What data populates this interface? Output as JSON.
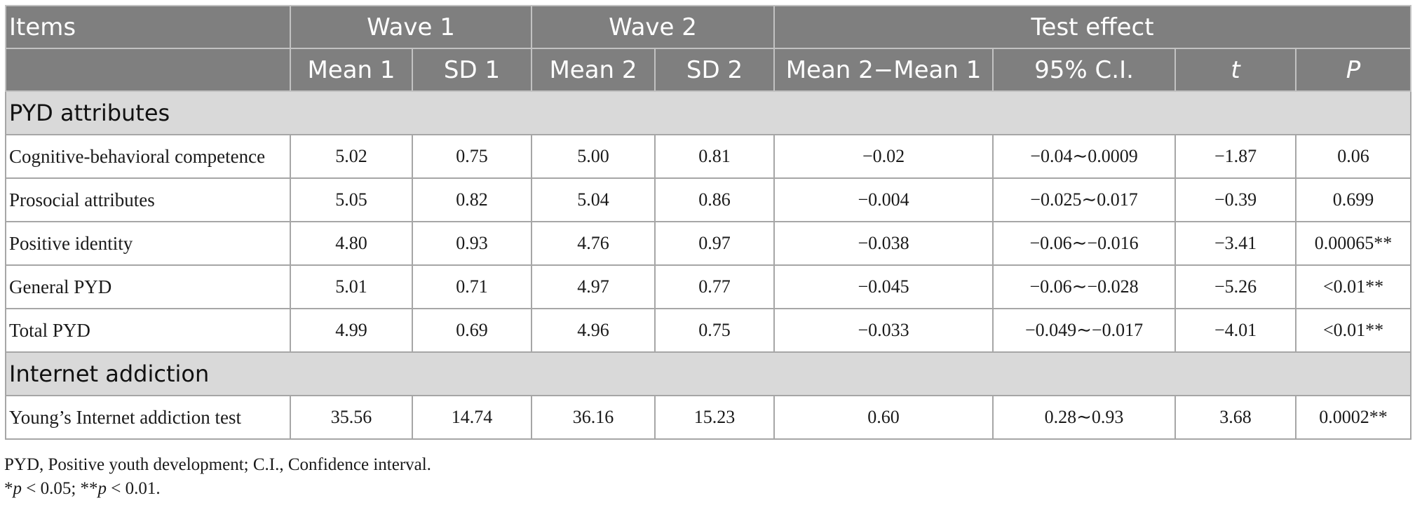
{
  "table": {
    "header_top": {
      "items": "Items",
      "wave1": "Wave 1",
      "wave2": "Wave 2",
      "test_effect": "Test effect"
    },
    "header_sub": {
      "mean1": "Mean 1",
      "sd1": "SD 1",
      "mean2": "Mean 2",
      "sd2": "SD 2",
      "diff": "Mean 2−Mean 1",
      "ci": "95% C.I.",
      "t": "t",
      "p": "P"
    },
    "sections": [
      {
        "title": "PYD attributes",
        "rows": [
          {
            "item": "Cognitive-behavioral competence",
            "mean1": "5.02",
            "sd1": "0.75",
            "mean2": "5.00",
            "sd2": "0.81",
            "diff": "−0.02",
            "ci": "−0.04∼0.0009",
            "t": "−1.87",
            "p": "0.06"
          },
          {
            "item": "Prosocial attributes",
            "mean1": "5.05",
            "sd1": "0.82",
            "mean2": "5.04",
            "sd2": "0.86",
            "diff": "−0.004",
            "ci": "−0.025∼0.017",
            "t": "−0.39",
            "p": "0.699"
          },
          {
            "item": "Positive identity",
            "mean1": "4.80",
            "sd1": "0.93",
            "mean2": "4.76",
            "sd2": "0.97",
            "diff": "−0.038",
            "ci": "−0.06∼−0.016",
            "t": "−3.41",
            "p": "0.00065**"
          },
          {
            "item": "General PYD",
            "mean1": "5.01",
            "sd1": "0.71",
            "mean2": "4.97",
            "sd2": "0.77",
            "diff": "−0.045",
            "ci": "−0.06∼−0.028",
            "t": "−5.26",
            "p": "<0.01**"
          },
          {
            "item": "Total PYD",
            "mean1": "4.99",
            "sd1": "0.69",
            "mean2": "4.96",
            "sd2": "0.75",
            "diff": "−0.033",
            "ci": "−0.049∼−0.017",
            "t": "−4.01",
            "p": "<0.01**"
          }
        ]
      },
      {
        "title": "Internet addiction",
        "rows": [
          {
            "item": "Young’s Internet addiction test",
            "mean1": "35.56",
            "sd1": "14.74",
            "mean2": "36.16",
            "sd2": "15.23",
            "diff": "0.60",
            "ci": "0.28∼0.93",
            "t": "3.68",
            "p": "0.0002**"
          }
        ]
      }
    ]
  },
  "footnotes": {
    "abbrev": "PYD, Positive youth development; C.I., Confidence interval.",
    "sig_p1": "p",
    "sig_text1": " < 0.05; **",
    "sig_p2": "p",
    "sig_text2": " < 0.01.",
    "sig_star": "*"
  }
}
